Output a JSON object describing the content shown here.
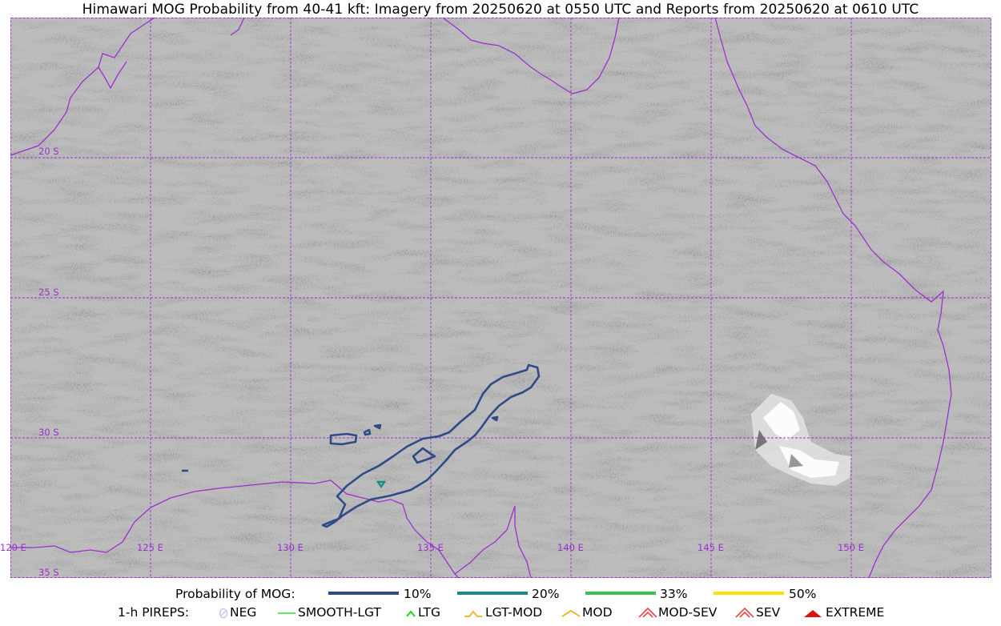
{
  "title": "Himawari MOG Probability from 40-41 kft: Imagery from 20250620 at 0550 UTC and Reports from 20250620 at 0610 UTC",
  "map": {
    "colors": {
      "grid": "#9b30d0",
      "coast": "#9b30d0",
      "contour_10": "#2f4a86",
      "contour_20": "#1a8a86",
      "contour_33": "#3cc050",
      "contour_50": "#ffe000"
    },
    "lat_labels": [
      "20 S",
      "25 S",
      "30 S",
      "35 S"
    ],
    "lon_labels": [
      "120 E",
      "125 E",
      "130 E",
      "135 E",
      "140 E",
      "145 E",
      "150 E"
    ]
  },
  "legend": {
    "probability": {
      "label": "Probability of MOG:",
      "items": [
        {
          "label": "10%",
          "color": "#2f4a86"
        },
        {
          "label": "20%",
          "color": "#1a8a86"
        },
        {
          "label": "33%",
          "color": "#3cc050"
        },
        {
          "label": "50%",
          "color": "#ffe000"
        }
      ]
    },
    "pireps": {
      "label": "1-h PIREPS:",
      "items": [
        {
          "label": "NEG",
          "color": "#c8c8f0",
          "icon": "neg-icon"
        },
        {
          "label": "SMOOTH-LGT",
          "color": "#33dd33",
          "icon": "smooth-lgt-icon"
        },
        {
          "label": "LTG",
          "color": "#22cc22",
          "icon": "ltg-icon"
        },
        {
          "label": "LGT-MOD",
          "color": "#f0b020",
          "icon": "lgt-mod-icon"
        },
        {
          "label": "MOD",
          "color": "#f0b020",
          "icon": "mod-icon"
        },
        {
          "label": "MOD-SEV",
          "color": "#ee3333",
          "icon": "mod-sev-icon"
        },
        {
          "label": "SEV",
          "color": "#ee3333",
          "icon": "sev-icon"
        },
        {
          "label": "EXTREME",
          "color": "#dd1111",
          "icon": "extreme-icon"
        }
      ]
    }
  }
}
